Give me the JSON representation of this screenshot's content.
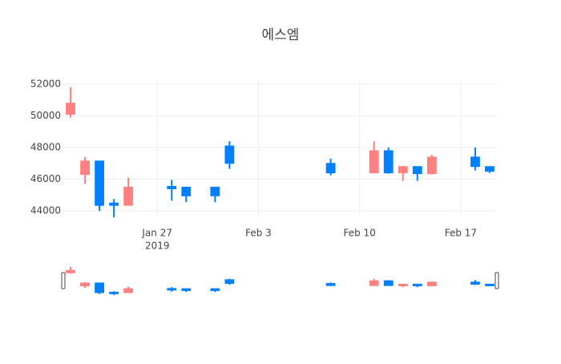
{
  "chart_data": {
    "type": "candlestick",
    "title": "에스엠",
    "x": [
      "2019-01-21",
      "2019-01-22",
      "2019-01-23",
      "2019-01-24",
      "2019-01-25",
      "2019-01-28",
      "2019-01-29",
      "2019-01-31",
      "2019-02-01",
      "2019-02-08",
      "2019-02-11",
      "2019-02-12",
      "2019-02-13",
      "2019-02-14",
      "2019-02-15",
      "2019-02-18",
      "2019-02-19"
    ],
    "open": [
      50100,
      46300,
      47150,
      44500,
      44350,
      45550,
      45500,
      45500,
      48100,
      47000,
      46400,
      47800,
      46400,
      46800,
      46350,
      47400,
      46800
    ],
    "high": [
      51800,
      47400,
      47150,
      44750,
      46100,
      45950,
      45500,
      45500,
      48400,
      47300,
      48400,
      48000,
      46850,
      46800,
      47550,
      48000,
      46800
    ],
    "low": [
      49900,
      45700,
      44000,
      43600,
      44350,
      44650,
      44550,
      44550,
      46650,
      46250,
      46400,
      46350,
      45900,
      45900,
      46300,
      46550,
      46400
    ],
    "close": [
      50800,
      47150,
      44350,
      44350,
      45500,
      45400,
      44950,
      44950,
      47000,
      46400,
      47800,
      46400,
      46800,
      46350,
      47400,
      46800,
      46500
    ],
    "increasing_color": "#ff8080",
    "decreasing_color": "#0080ff",
    "xlim": [
      "2019-01-20T12:00",
      "2019-02-19T12:00"
    ],
    "xticks": [
      {
        "value": "2019-01-27",
        "label": "Jan 27"
      },
      {
        "value": "2019-02-03",
        "label": "Feb 3"
      },
      {
        "value": "2019-02-10",
        "label": "Feb 10"
      },
      {
        "value": "2019-02-17",
        "label": "Feb 17"
      }
    ],
    "xtick_year": "2019",
    "ylim": [
      43650,
      52250
    ],
    "yticks": [
      44000,
      46000,
      48000,
      50000,
      52000
    ],
    "grid": true,
    "rangeslider": true
  }
}
